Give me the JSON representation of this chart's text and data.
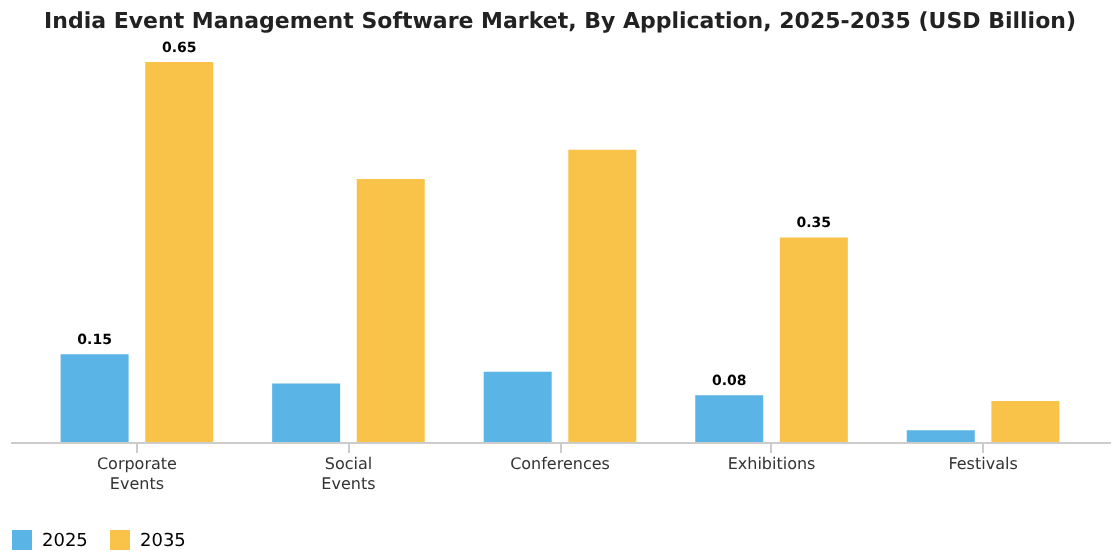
{
  "chart_data": {
    "type": "bar",
    "title": "India Event Management Software Market, By Application, 2025-2035 (USD Billion)",
    "categories": [
      "Corporate Events",
      "Social Events",
      "Conferences",
      "Exhibitions",
      "Festivals"
    ],
    "series": [
      {
        "name": "2025",
        "color": "#5ab4e5",
        "values": [
          0.15,
          0.1,
          0.12,
          0.08,
          0.02
        ],
        "value_labels": [
          "0.15",
          null,
          null,
          "0.08",
          null
        ]
      },
      {
        "name": "2035",
        "color": "#f9c34a",
        "values": [
          0.65,
          0.45,
          0.5,
          0.35,
          0.07
        ],
        "value_labels": [
          "0.65",
          null,
          null,
          "0.35",
          null
        ]
      }
    ],
    "legend": "bottom",
    "grid": false
  }
}
